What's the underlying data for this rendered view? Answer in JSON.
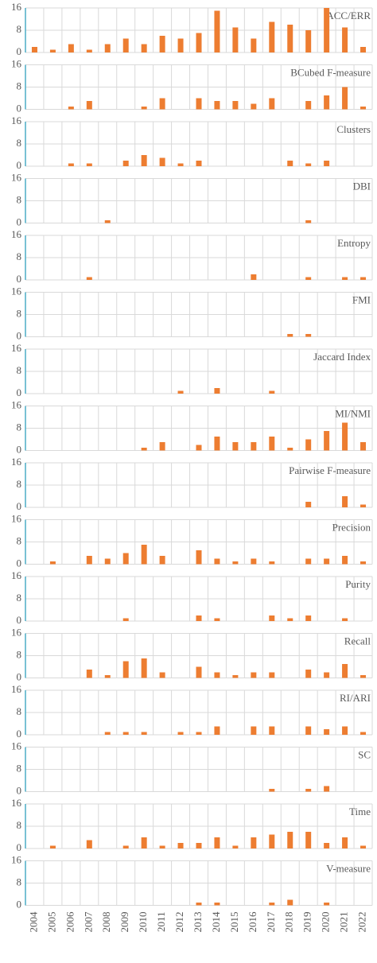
{
  "chart_data": [
    {
      "type": "bar",
      "title": "ACC/ERR",
      "values": [
        2,
        1,
        3,
        1,
        3,
        5,
        3,
        6,
        5,
        7,
        15,
        9,
        5,
        11,
        10,
        8,
        16,
        9,
        2
      ],
      "color": "#ed7d31",
      "ylim": [
        0,
        16
      ],
      "yticks": [
        0,
        8,
        16
      ],
      "grid": true
    },
    {
      "type": "bar",
      "title": "BCubed F-measure",
      "values": [
        0,
        0,
        1,
        3,
        0,
        0,
        1,
        4,
        0,
        4,
        3,
        3,
        2,
        4,
        0,
        3,
        5,
        8,
        1
      ],
      "color": "#ed7d31",
      "ylim": [
        0,
        16
      ],
      "yticks": [
        0,
        8,
        16
      ],
      "grid": true
    },
    {
      "type": "bar",
      "title": "Clusters",
      "values": [
        0,
        0,
        1,
        1,
        0,
        2,
        4,
        3,
        1,
        2,
        0,
        0,
        0,
        0,
        2,
        1,
        2,
        0,
        0
      ],
      "color": "#ed7d31",
      "ylim": [
        0,
        16
      ],
      "yticks": [
        0,
        8,
        16
      ],
      "grid": true
    },
    {
      "type": "bar",
      "title": "DBI",
      "values": [
        0,
        0,
        0,
        0,
        1,
        0,
        0,
        0,
        0,
        0,
        0,
        0,
        0,
        0,
        0,
        1,
        0,
        0,
        0
      ],
      "color": "#ed7d31",
      "ylim": [
        0,
        16
      ],
      "yticks": [
        0,
        8,
        16
      ],
      "grid": true
    },
    {
      "type": "bar",
      "title": "Entropy",
      "values": [
        0,
        0,
        0,
        1,
        0,
        0,
        0,
        0,
        0,
        0,
        0,
        0,
        2,
        0,
        0,
        1,
        0,
        1,
        1
      ],
      "color": "#ed7d31",
      "ylim": [
        0,
        16
      ],
      "yticks": [
        0,
        8,
        16
      ],
      "grid": true
    },
    {
      "type": "bar",
      "title": "FMI",
      "values": [
        0,
        0,
        0,
        0,
        0,
        0,
        0,
        0,
        0,
        0,
        0,
        0,
        0,
        0,
        1,
        1,
        0,
        0,
        0
      ],
      "color": "#ed7d31",
      "ylim": [
        0,
        16
      ],
      "yticks": [
        0,
        8,
        16
      ],
      "grid": true
    },
    {
      "type": "bar",
      "title": "Jaccard Index",
      "values": [
        0,
        0,
        0,
        0,
        0,
        0,
        0,
        0,
        1,
        0,
        2,
        0,
        0,
        1,
        0,
        0,
        0,
        0,
        0
      ],
      "color": "#ed7d31",
      "ylim": [
        0,
        16
      ],
      "yticks": [
        0,
        8,
        16
      ],
      "grid": true
    },
    {
      "type": "bar",
      "title": "MI/NMI",
      "values": [
        0,
        0,
        0,
        0,
        0,
        0,
        1,
        3,
        0,
        2,
        5,
        3,
        3,
        5,
        1,
        4,
        7,
        10,
        3
      ],
      "color": "#ed7d31",
      "ylim": [
        0,
        16
      ],
      "yticks": [
        0,
        8,
        16
      ],
      "grid": true
    },
    {
      "type": "bar",
      "title": "Pairwise F-measure",
      "values": [
        0,
        0,
        0,
        0,
        0,
        0,
        0,
        0,
        0,
        0,
        0,
        0,
        0,
        0,
        0,
        2,
        0,
        4,
        1
      ],
      "color": "#ed7d31",
      "ylim": [
        0,
        16
      ],
      "yticks": [
        0,
        8,
        16
      ],
      "grid": true
    },
    {
      "type": "bar",
      "title": "Precision",
      "values": [
        0,
        1,
        0,
        3,
        2,
        4,
        7,
        3,
        0,
        5,
        2,
        1,
        2,
        1,
        0,
        2,
        2,
        3,
        1
      ],
      "color": "#ed7d31",
      "ylim": [
        0,
        16
      ],
      "yticks": [
        0,
        8,
        16
      ],
      "grid": true
    },
    {
      "type": "bar",
      "title": "Purity",
      "values": [
        0,
        0,
        0,
        0,
        0,
        1,
        0,
        0,
        0,
        2,
        1,
        0,
        0,
        2,
        1,
        2,
        0,
        1,
        0
      ],
      "color": "#ed7d31",
      "ylim": [
        0,
        16
      ],
      "yticks": [
        0,
        8,
        16
      ],
      "grid": true
    },
    {
      "type": "bar",
      "title": "Recall",
      "values": [
        0,
        0,
        0,
        3,
        1,
        6,
        7,
        2,
        0,
        4,
        2,
        1,
        2,
        2,
        0,
        3,
        2,
        5,
        1
      ],
      "color": "#ed7d31",
      "ylim": [
        0,
        16
      ],
      "yticks": [
        0,
        8,
        16
      ],
      "grid": true
    },
    {
      "type": "bar",
      "title": "RI/ARI",
      "values": [
        0,
        0,
        0,
        0,
        1,
        1,
        1,
        0,
        1,
        1,
        3,
        0,
        3,
        3,
        0,
        3,
        2,
        3,
        1
      ],
      "color": "#ed7d31",
      "ylim": [
        0,
        16
      ],
      "yticks": [
        0,
        8,
        16
      ],
      "grid": true
    },
    {
      "type": "bar",
      "title": "SC",
      "values": [
        0,
        0,
        0,
        0,
        0,
        0,
        0,
        0,
        0,
        0,
        0,
        0,
        0,
        1,
        0,
        1,
        2,
        0,
        0
      ],
      "color": "#ed7d31",
      "ylim": [
        0,
        16
      ],
      "yticks": [
        0,
        8,
        16
      ],
      "grid": true
    },
    {
      "type": "bar",
      "title": "Time",
      "values": [
        0,
        1,
        0,
        3,
        0,
        1,
        4,
        1,
        2,
        2,
        4,
        1,
        4,
        5,
        6,
        6,
        2,
        4,
        1
      ],
      "color": "#ed7d31",
      "ylim": [
        0,
        16
      ],
      "yticks": [
        0,
        8,
        16
      ],
      "grid": true
    },
    {
      "type": "bar",
      "title": "V-measure",
      "values": [
        0,
        0,
        0,
        0,
        0,
        0,
        0,
        0,
        0,
        1,
        1,
        0,
        0,
        1,
        2,
        0,
        1,
        0,
        0
      ],
      "color": "#ed7d31",
      "ylim": [
        0,
        16
      ],
      "yticks": [
        0,
        8,
        16
      ],
      "grid": true,
      "categories": [
        "2004",
        "2005",
        "2006",
        "2007",
        "2008",
        "2009",
        "2010",
        "2011",
        "2012",
        "2013",
        "2014",
        "2015",
        "2016",
        "2017",
        "2018",
        "2019",
        "2020",
        "2021",
        "2022"
      ]
    }
  ]
}
